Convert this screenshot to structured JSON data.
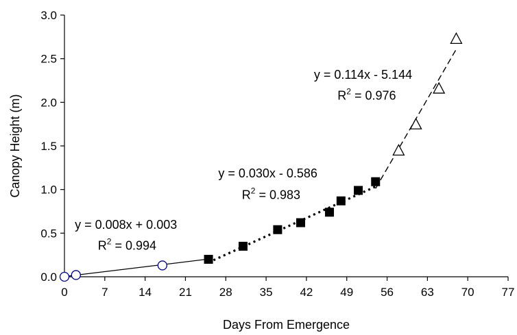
{
  "chart_data": {
    "type": "scatter",
    "xlabel": "Days From Emergence",
    "ylabel": "Canopy Height (m)",
    "xlim": [
      0,
      77
    ],
    "ylim": [
      0,
      3.0
    ],
    "xticks": [
      "0",
      "7",
      "14",
      "21",
      "28",
      "35",
      "42",
      "49",
      "56",
      "63",
      "70",
      "77"
    ],
    "yticks": [
      "0.0",
      "0.5",
      "1.0",
      "1.5",
      "2.0",
      "2.5",
      "3.0"
    ],
    "grid": false,
    "legend": "none",
    "series": [
      {
        "marker": "open-circle",
        "color": "#000080",
        "x": [
          0,
          2,
          17
        ],
        "y": [
          0.0,
          0.02,
          0.13
        ],
        "fit": {
          "slope": 0.008,
          "intercept": 0.003,
          "x_range": [
            0,
            25
          ],
          "line_style": "solid"
        },
        "equation": "y = 0.008x + 0.003",
        "r2_value": "= 0.994"
      },
      {
        "marker": "filled-square",
        "color": "#000000",
        "x": [
          25,
          31,
          37,
          41,
          46,
          48,
          51,
          54
        ],
        "y": [
          0.2,
          0.35,
          0.54,
          0.62,
          0.74,
          0.87,
          0.99,
          1.09
        ],
        "fit": {
          "slope": 0.03,
          "intercept": -0.586,
          "x_range": [
            25,
            54
          ],
          "line_style": "dotted"
        },
        "equation": "y = 0.030x - 0.586",
        "r2_value": "= 0.983"
      },
      {
        "marker": "open-triangle",
        "color": "#000000",
        "x": [
          58,
          61,
          65,
          68
        ],
        "y": [
          1.44,
          1.74,
          2.15,
          2.72
        ],
        "fit": {
          "slope": 0.114,
          "intercept": -5.144,
          "x_range": [
            54,
            68
          ],
          "line_style": "dashed"
        },
        "equation": "y = 0.114x - 5.144",
        "r2_value": "= 0.976"
      }
    ]
  }
}
